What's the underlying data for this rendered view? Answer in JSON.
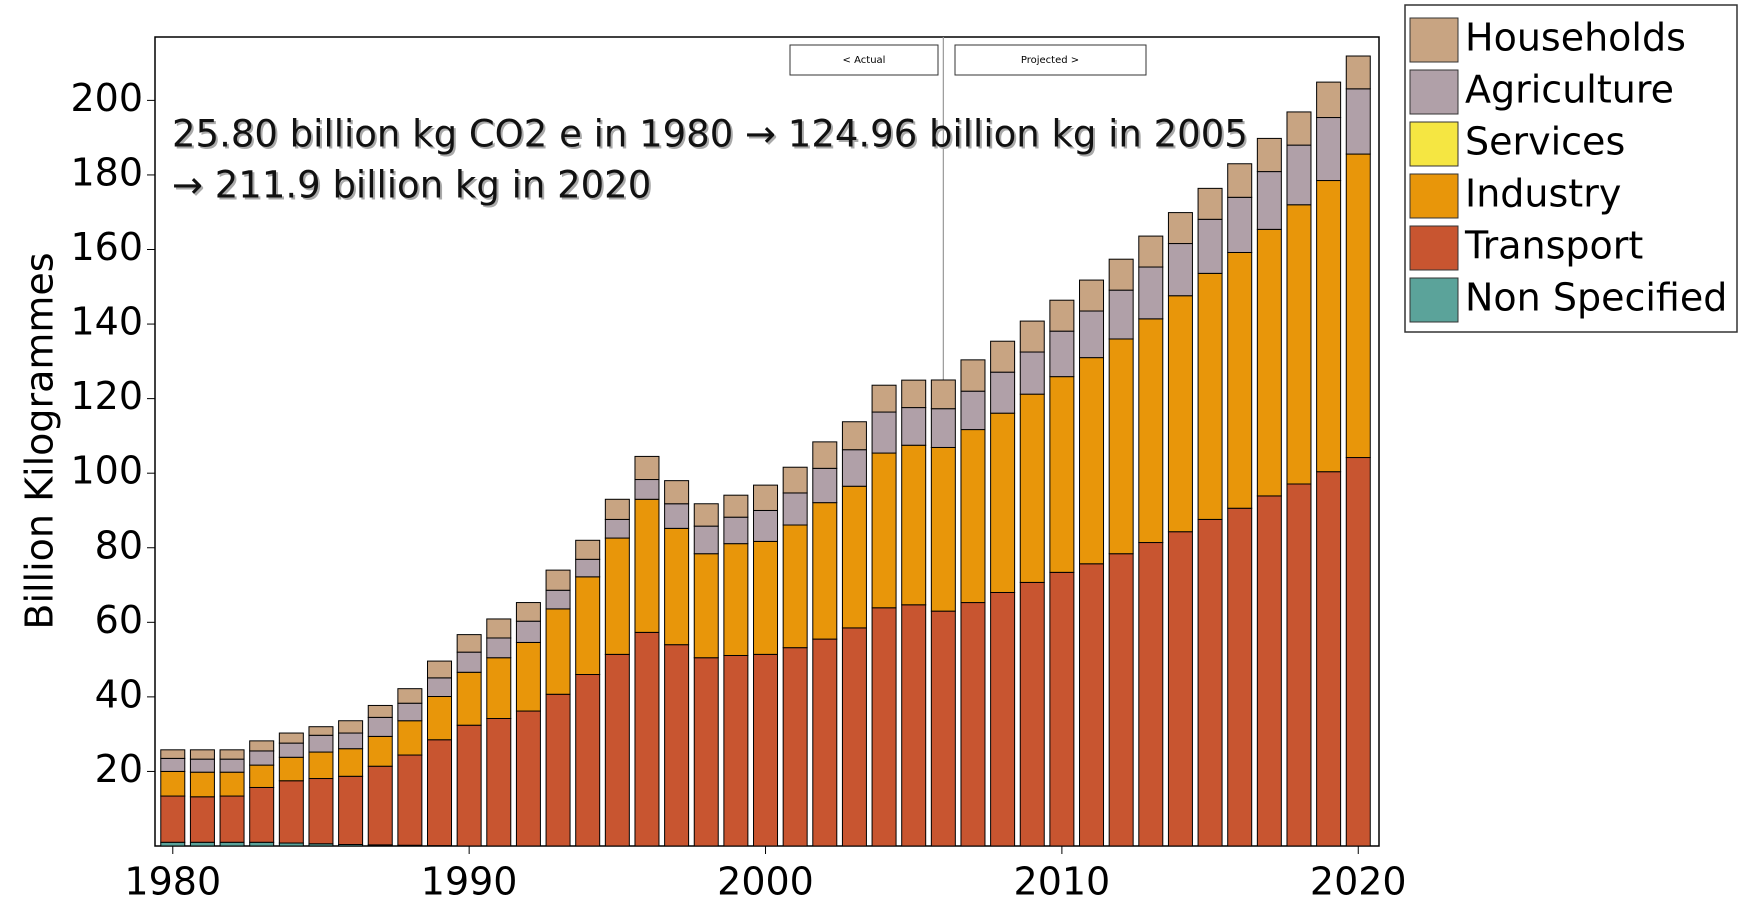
{
  "chart_data": {
    "type": "stacked-bar",
    "y_label": "Billion Kilogrammes",
    "annotations": [
      "25.80 billion kg CO2 e in 1980 → 124.96 billion kg in 2005",
      "→ 211.9 billion kg in 2020"
    ],
    "buttons": [
      "< Actual",
      "Projected >"
    ],
    "divider_x": 2006,
    "x": [
      1980,
      1981,
      1982,
      1983,
      1984,
      1985,
      1986,
      1987,
      1988,
      1989,
      1990,
      1991,
      1992,
      1993,
      1994,
      1995,
      1996,
      1997,
      1998,
      1999,
      2000,
      2001,
      2002,
      2003,
      2004,
      2005,
      2006,
      2007,
      2008,
      2009,
      2010,
      2011,
      2012,
      2013,
      2014,
      2015,
      2016,
      2017,
      2018,
      2019,
      2020
    ],
    "xlim": [
      1979.4,
      2020.7
    ],
    "xticks": [
      1980,
      1990,
      2000,
      2010,
      2020
    ],
    "ylim": [
      0,
      217
    ],
    "yticks": [
      20,
      40,
      60,
      80,
      100,
      120,
      140,
      160,
      180,
      200
    ],
    "series": [
      {
        "name": "Non Specified",
        "color": "#5ba39a",
        "values": [
          1,
          1,
          1,
          1,
          0.8,
          0.6,
          0.4,
          0.3,
          0.2,
          0.1,
          0,
          0,
          0,
          0,
          0,
          0,
          0,
          0,
          0,
          0,
          0,
          0,
          0,
          0,
          0,
          0,
          0,
          0,
          0,
          0,
          0,
          0,
          0,
          0,
          0,
          0,
          0,
          0,
          0,
          0,
          0
        ]
      },
      {
        "name": "Transport",
        "color": "#c85530",
        "values": [
          12.4,
          12.2,
          12.4,
          14.7,
          16.7,
          17.5,
          18.3,
          21.1,
          24.2,
          28.4,
          32.4,
          34.2,
          36.2,
          40.7,
          46,
          51.4,
          57.3,
          54,
          50.5,
          51.1,
          51.4,
          53.2,
          55.5,
          58.5,
          63.9,
          64.7,
          63,
          65.3,
          68,
          70.7,
          73.4,
          75.7,
          78.4,
          81.4,
          84.3,
          87.6,
          90.6,
          93.9,
          97.1,
          100.4,
          104.2
        ]
      },
      {
        "name": "Industry",
        "color": "#e8960a",
        "values": [
          6.6,
          6.6,
          6.4,
          6,
          6.3,
          7.1,
          7.4,
          8,
          9.2,
          11.6,
          14.2,
          16.3,
          18.4,
          22.9,
          26.2,
          31.2,
          35.7,
          31.2,
          27.9,
          30,
          30.3,
          32.9,
          36.6,
          38,
          41.5,
          42.8,
          43.9,
          46.4,
          48.1,
          50.5,
          52.5,
          55.3,
          57.6,
          60,
          63.3,
          66,
          68.6,
          71.5,
          74.9,
          78.1,
          81.4
        ]
      },
      {
        "name": "Services",
        "color": "#f5e642",
        "values": [
          0,
          0,
          0,
          0,
          0,
          0,
          0,
          0,
          0,
          0,
          0,
          0,
          0,
          0,
          0,
          0,
          0,
          0,
          0,
          0,
          0,
          0,
          0,
          0,
          0,
          0,
          0,
          0,
          0,
          0,
          0,
          0,
          0,
          0,
          0,
          0,
          0,
          0,
          0,
          0,
          0
        ]
      },
      {
        "name": "Agriculture",
        "color": "#b0a0a8",
        "values": [
          3.5,
          3.5,
          3.5,
          3.8,
          3.8,
          4.5,
          4.2,
          5.1,
          4.7,
          5,
          5.4,
          5.3,
          5.7,
          5,
          4.7,
          5,
          5.3,
          6.6,
          7.4,
          7.1,
          8.3,
          8.6,
          9.2,
          9.8,
          11,
          10.1,
          10.4,
          10.3,
          11,
          11.3,
          12.2,
          12.5,
          13.1,
          13.9,
          14,
          14.5,
          14.8,
          15.5,
          16,
          16.9,
          17.5
        ]
      },
      {
        "name": "Households",
        "color": "#c8a482",
        "values": [
          2.3,
          2.5,
          2.5,
          2.7,
          2.7,
          2.3,
          3.3,
          3.2,
          3.9,
          4.5,
          4.7,
          5.1,
          5,
          5.4,
          5.1,
          5.4,
          6.2,
          6.2,
          6,
          5.9,
          6.8,
          6.9,
          7.1,
          7.5,
          7.2,
          7.36,
          7.7,
          8.4,
          8.3,
          8.3,
          8.3,
          8.3,
          8.3,
          8.3,
          8.3,
          8.3,
          9,
          8.9,
          8.9,
          9.5,
          8.8
        ]
      }
    ]
  }
}
